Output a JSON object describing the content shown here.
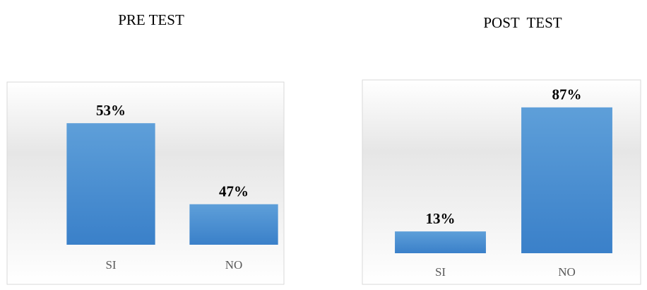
{
  "chart_data": [
    {
      "type": "bar",
      "title": "PRE TEST",
      "categories": [
        "SI",
        "NO"
      ],
      "values": [
        53,
        47
      ],
      "value_labels": [
        "53%",
        "47%"
      ],
      "color": "#4a8fd3",
      "ylim": [
        44,
        55
      ]
    },
    {
      "type": "bar",
      "title": "POST  TEST",
      "categories": [
        "SI",
        "NO"
      ],
      "values": [
        13,
        87
      ],
      "value_labels": [
        "13%",
        "87%"
      ],
      "color": "#4a8fd3",
      "ylim": [
        0,
        100
      ]
    }
  ]
}
